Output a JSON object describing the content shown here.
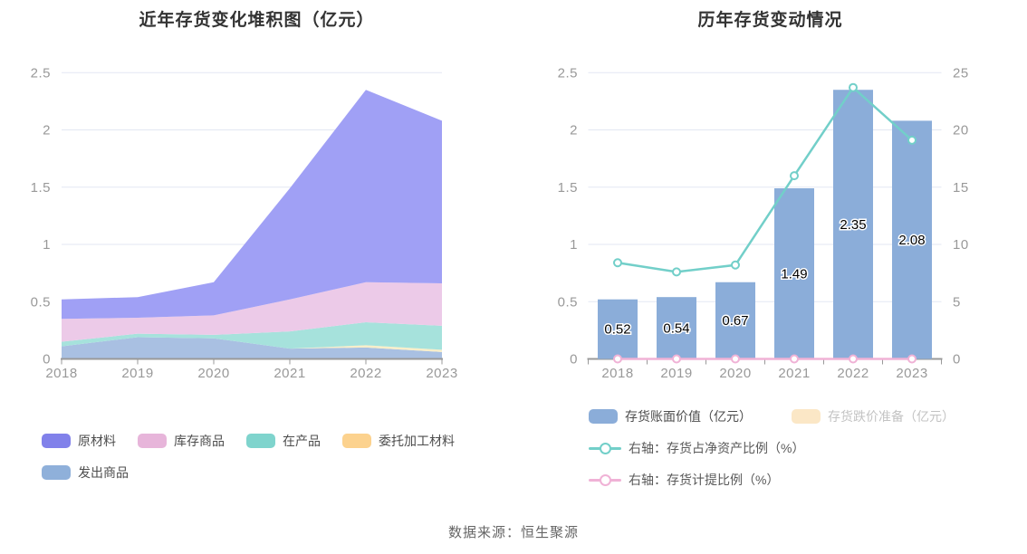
{
  "footer": {
    "source": "数据来源：恒生聚源"
  },
  "colors": {
    "title_text": "#333333",
    "axis_label": "#999999",
    "axis_line": "#999999",
    "grid_line": "#e3e7f3",
    "legend_text_active": "#4d4d4d",
    "legend_text_line": "#595959",
    "legend_text_inactive": "#c3c3c3",
    "bar_label_fill": "#000000",
    "bar_label_outline": "#ffffff",
    "footer_text": "#666666"
  },
  "left_chart": {
    "title": "近年存货变化堆积图（亿元）",
    "chart_data": {
      "type": "area",
      "stacked": true,
      "grid": true,
      "x": [
        "2018",
        "2019",
        "2020",
        "2021",
        "2022",
        "2023"
      ],
      "ylim": [
        0,
        2.5
      ],
      "yticks": [
        "0",
        "0.5",
        "1",
        "1.5",
        "2",
        "2.5"
      ],
      "ytick_values": [
        0,
        0.5,
        1,
        1.5,
        2,
        2.5
      ],
      "series": [
        {
          "key": "shipped-goods",
          "name": "发出商品",
          "color": "#8fb0da",
          "fill": "#a9c0e2",
          "values": [
            0.11,
            0.19,
            0.18,
            0.09,
            0.1,
            0.06
          ]
        },
        {
          "key": "consigned-processing-materials",
          "name": "委托加工材料",
          "color": "#fcd28e",
          "fill": "#f8eec9",
          "values": [
            0,
            0,
            0,
            0,
            0.02,
            0.02
          ]
        },
        {
          "key": "work-in-progress",
          "name": "在产品",
          "color": "#7fd4cd",
          "fill": "#a6e2dc",
          "values": [
            0.04,
            0.03,
            0.03,
            0.15,
            0.2,
            0.21
          ]
        },
        {
          "key": "stock-goods",
          "name": "库存商品",
          "color": "#e7b5da",
          "fill": "#eccae8",
          "values": [
            0.2,
            0.14,
            0.17,
            0.28,
            0.35,
            0.37
          ]
        },
        {
          "key": "raw-materials",
          "name": "原材料",
          "color": "#8181ea",
          "fill": "#a0a0f5",
          "values": [
            0.17,
            0.18,
            0.29,
            0.97,
            1.68,
            1.42
          ]
        }
      ],
      "totals": [
        0.52,
        0.54,
        0.67,
        1.49,
        2.35,
        2.08
      ],
      "legend_order": [
        "raw-materials",
        "stock-goods",
        "work-in-progress",
        "consigned-processing-materials",
        "shipped-goods"
      ],
      "legend_position": "bottom"
    }
  },
  "right_chart": {
    "title": "历年存货变动情况",
    "chart_data": {
      "type": "bar",
      "grid": true,
      "x": [
        "2018",
        "2019",
        "2020",
        "2021",
        "2022",
        "2023"
      ],
      "left_axis": {
        "lim": [
          0,
          2.5
        ],
        "ticks": [
          "0",
          "0.5",
          "1",
          "1.5",
          "2",
          "2.5"
        ],
        "tick_values": [
          0,
          0.5,
          1,
          1.5,
          2,
          2.5
        ]
      },
      "right_axis": {
        "lim": [
          0,
          25
        ],
        "ticks": [
          "0",
          "5",
          "10",
          "15",
          "20",
          "25"
        ],
        "tick_values": [
          0,
          5,
          10,
          15,
          20,
          25
        ]
      },
      "series": [
        {
          "key": "inventory-book-value",
          "type": "bar",
          "axis": "left",
          "active": true,
          "name": "存货账面价值（亿元）",
          "color": "#8badd9",
          "values": [
            0.52,
            0.54,
            0.67,
            1.49,
            2.35,
            2.08
          ],
          "value_labels": [
            "0.52",
            "0.54",
            "0.67",
            "1.49",
            "2.35",
            "2.08"
          ]
        },
        {
          "key": "inventory-depreciation-reserve",
          "type": "bar",
          "axis": "left",
          "active": false,
          "name": "存货跌价准备（亿元）",
          "color": "#fbe7c6"
        },
        {
          "key": "inventory-to-net-assets-ratio",
          "type": "line",
          "axis": "right",
          "active": true,
          "name": "右轴：存货占净资产比例（%）",
          "color": "#72cfc9",
          "values": [
            8.4,
            7.6,
            8.2,
            16.0,
            23.7,
            19.1
          ]
        },
        {
          "key": "inventory-provision-ratio",
          "type": "line",
          "axis": "right",
          "active": true,
          "name": "右轴：存货计提比例（%）",
          "color": "#f0b2d6",
          "values": [
            0,
            0,
            0,
            0,
            0,
            0
          ]
        }
      ],
      "legend_position": "bottom"
    }
  }
}
